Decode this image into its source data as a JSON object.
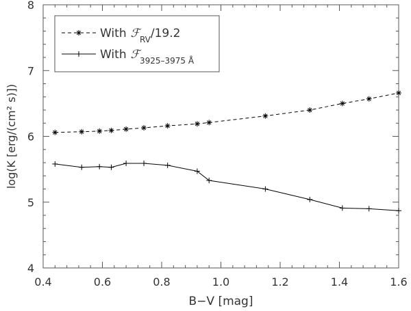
{
  "chart_data": {
    "type": "line",
    "xlabel": "B−V [mag]",
    "ylabel": "log(K [erg/(cm² s)])",
    "xlim": [
      0.4,
      1.6
    ],
    "ylim": [
      4,
      8
    ],
    "xticks": [
      0.4,
      0.6,
      0.8,
      1.0,
      1.2,
      1.4,
      1.6
    ],
    "yticks": [
      4,
      5,
      6,
      7,
      8
    ],
    "xtick_labels": [
      "0.4",
      "0.6",
      "0.8",
      "1.0",
      "1.2",
      "1.4",
      "1.6"
    ],
    "ytick_labels": [
      "4",
      "5",
      "6",
      "7",
      "8"
    ],
    "grid": false,
    "legend": "top-left",
    "series": [
      {
        "name": "With ℱRV/19.2",
        "legend_text": "With",
        "legend_symbol": "ℱ",
        "legend_sub": "RV",
        "legend_suffix": "/19.2",
        "style": "dashed",
        "marker": "asterisk",
        "color": "#000000",
        "x": [
          0.44,
          0.53,
          0.59,
          0.63,
          0.68,
          0.74,
          0.82,
          0.92,
          0.96,
          1.15,
          1.3,
          1.41,
          1.5,
          1.6
        ],
        "y": [
          6.06,
          6.07,
          6.08,
          6.09,
          6.11,
          6.13,
          6.16,
          6.19,
          6.21,
          6.31,
          6.4,
          6.5,
          6.57,
          6.66
        ]
      },
      {
        "name": "With ℱ3925–3975 Å",
        "legend_text": "With",
        "legend_symbol": "ℱ",
        "legend_sub": "3925–3975 Å",
        "legend_suffix": "",
        "style": "solid",
        "marker": "plus",
        "color": "#000000",
        "x": [
          0.44,
          0.53,
          0.59,
          0.63,
          0.68,
          0.74,
          0.82,
          0.92,
          0.96,
          1.15,
          1.3,
          1.41,
          1.5,
          1.6
        ],
        "y": [
          5.58,
          5.53,
          5.54,
          5.53,
          5.59,
          5.59,
          5.56,
          5.47,
          5.33,
          5.2,
          5.04,
          4.91,
          4.9,
          4.87
        ]
      }
    ]
  }
}
